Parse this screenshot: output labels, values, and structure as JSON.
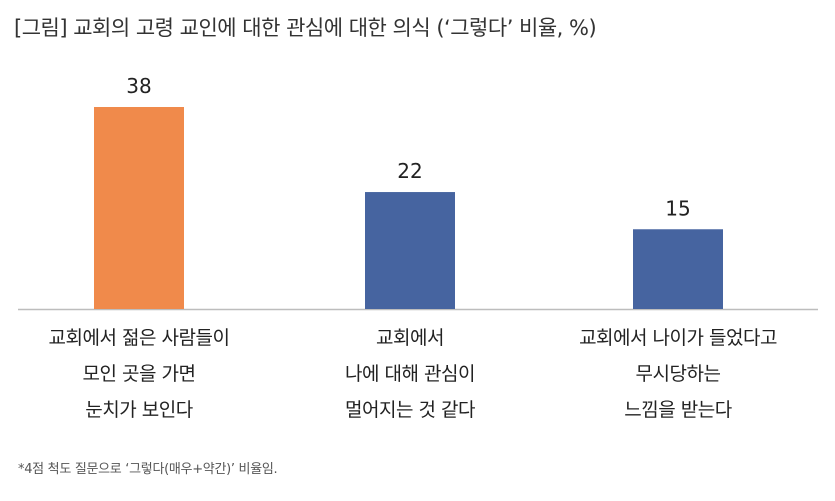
{
  "title": "[그림] 교회의 고령 교인에 대한 관심에 대한 의식 (‘그렇다’ 비율, %)",
  "footnote": "*4점 척도 질문으로 ‘그렇다(매우+약간)’ 비율임.",
  "colors": {
    "highlight": "#F08A4B",
    "default": "#4664A0",
    "axis": "#BDBDBD"
  },
  "chart_data": {
    "type": "bar",
    "categories": [
      [
        "교회에서 젊은 사람들이",
        "모인 곳을 가면",
        "눈치가 보인다"
      ],
      [
        "교회에서",
        "나에 대해 관심이",
        "멀어지는 것 같다"
      ],
      [
        "교회에서 나이가 들었다고",
        "무시당하는",
        "느낌을 받는다"
      ]
    ],
    "values": [
      38,
      22,
      15
    ],
    "bar_colors": [
      "#F08A4B",
      "#4664A0",
      "#4664A0"
    ],
    "ylim": [
      0,
      38
    ],
    "grid": false,
    "data_labels": true
  }
}
